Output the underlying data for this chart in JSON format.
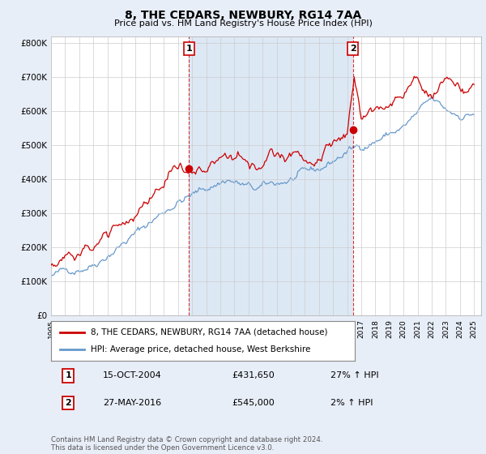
{
  "title": "8, THE CEDARS, NEWBURY, RG14 7AA",
  "subtitle": "Price paid vs. HM Land Registry's House Price Index (HPI)",
  "ylim": [
    0,
    820000
  ],
  "yticks": [
    0,
    100000,
    200000,
    300000,
    400000,
    500000,
    600000,
    700000,
    800000
  ],
  "ytick_labels": [
    "£0",
    "£100K",
    "£200K",
    "£300K",
    "£400K",
    "£500K",
    "£600K",
    "£700K",
    "£800K"
  ],
  "line1_color": "#cc0000",
  "line2_color": "#6699cc",
  "shade_color": "#dde8f5",
  "annotation1": {
    "num": "1",
    "date": "15-OCT-2004",
    "price": "£431,650",
    "hpi": "27% ↑ HPI"
  },
  "annotation2": {
    "num": "2",
    "date": "27-MAY-2016",
    "price": "£545,000",
    "hpi": "2% ↑ HPI"
  },
  "legend_line1": "8, THE CEDARS, NEWBURY, RG14 7AA (detached house)",
  "legend_line2": "HPI: Average price, detached house, West Berkshire",
  "footer": "Contains HM Land Registry data © Crown copyright and database right 2024.\nThis data is licensed under the Open Government Licence v3.0.",
  "bg_color": "#e8eef8",
  "plot_bg_color": "#ffffff",
  "grid_color": "#cccccc",
  "marker1_x": 2004.79,
  "marker1_y": 431650,
  "marker2_x": 2016.41,
  "marker2_y": 545000,
  "vline1_x": 2004.79,
  "vline2_x": 2016.41,
  "xmin": 1995,
  "xmax": 2025.5
}
